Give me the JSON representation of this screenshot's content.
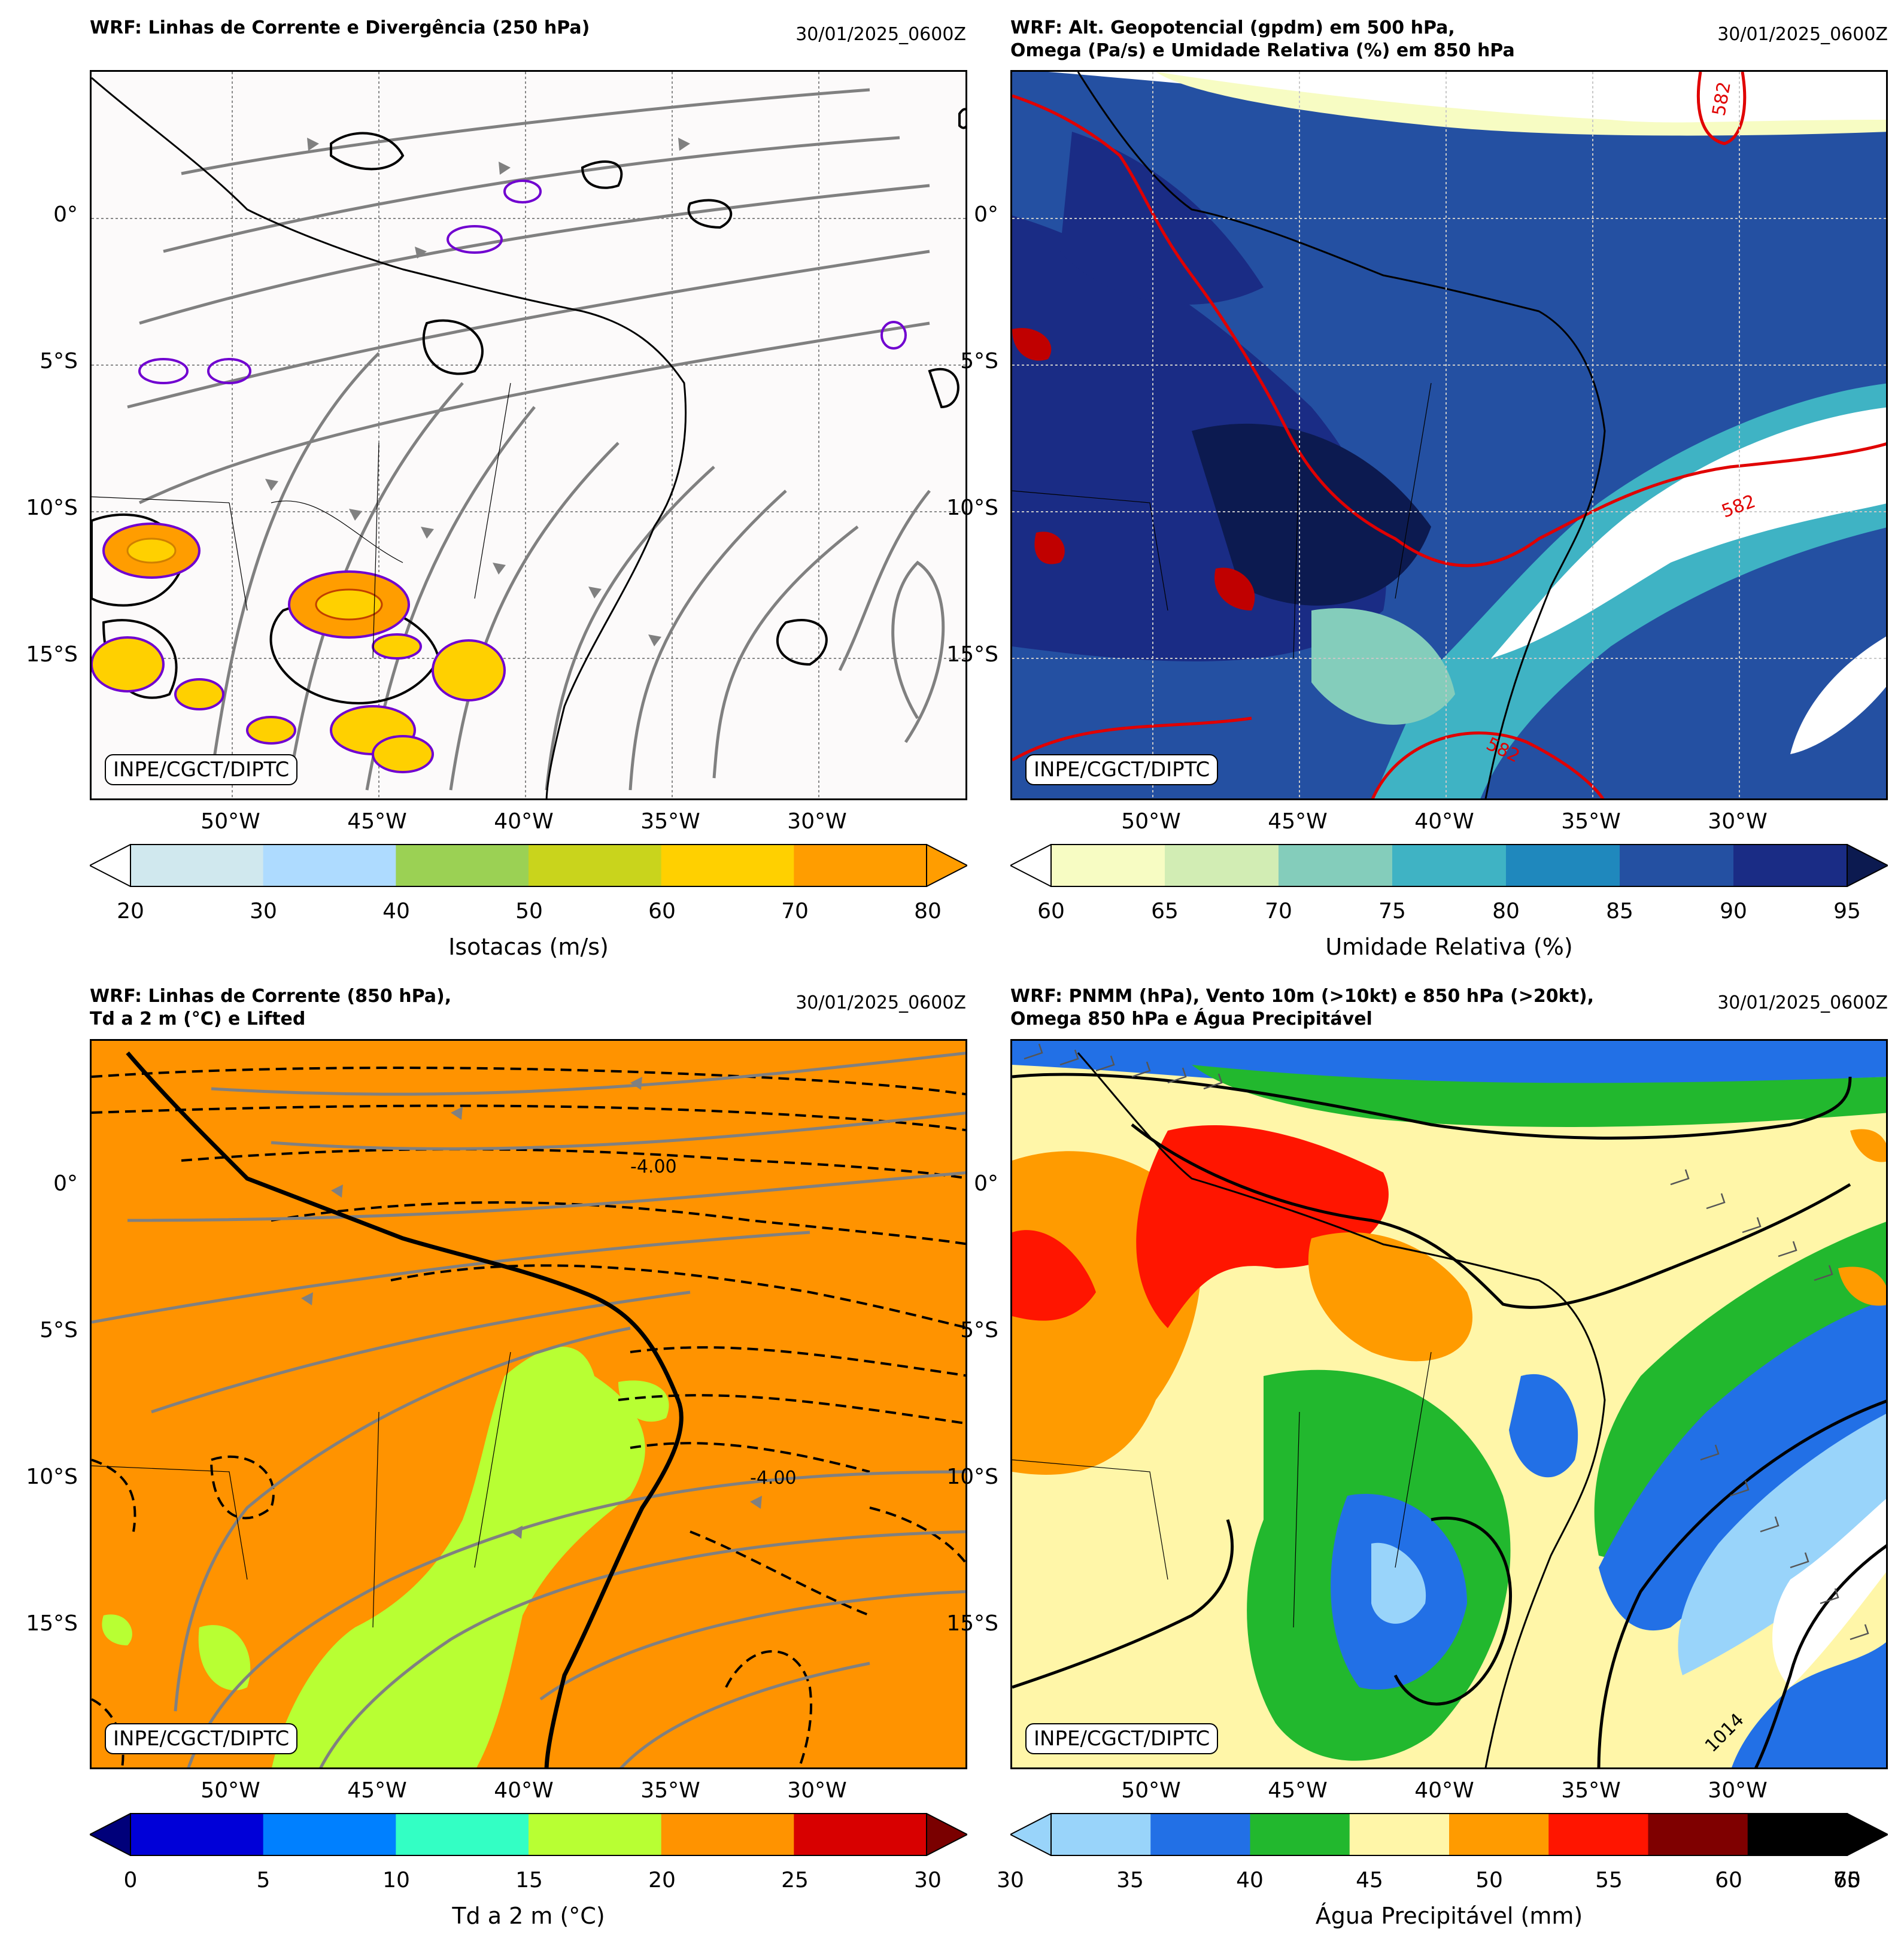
{
  "credit": "INPE/CGCT/DIPTC",
  "lat_labels": [
    "0°",
    "5°S",
    "10°S",
    "15°S"
  ],
  "lon_labels": [
    "50°W",
    "45°W",
    "40°W",
    "35°W",
    "30°W"
  ],
  "panels": [
    {
      "title": "WRF: Linhas de Corrente e Divergência (250 hPa)",
      "date": "30/01/2025_0600Z",
      "colorbar": {
        "label": "Isotacas (m/s)",
        "ticks": [
          "20",
          "30",
          "40",
          "50",
          "60",
          "70",
          "80"
        ],
        "colors": [
          "#d0e8ee",
          "#aedbff",
          "#9bd154",
          "#c9d41c",
          "#ffd000",
          "#ff9d00"
        ],
        "under_color": "#ffffff",
        "over_color": "#ff9d00"
      },
      "contour_label": ""
    },
    {
      "title": "WRF: Alt. Geopotencial (gpdm) em 500 hPa,\nOmega (Pa/s) e Umidade Relativa (%) em 850 hPa",
      "date": "30/01/2025_0600Z",
      "colorbar": {
        "label": "Umidade Relativa (%)",
        "ticks": [
          "60",
          "65",
          "70",
          "75",
          "80",
          "85",
          "90",
          "95"
        ],
        "colors": [
          "#f7fcc3",
          "#d2edb4",
          "#84cdbb",
          "#3fb3c4",
          "#1f88bd",
          "#2450a2",
          "#1a2c85"
        ],
        "under_color": "#ffffff",
        "over_color": "#0c1a50"
      },
      "contour_label": "582"
    },
    {
      "title": "WRF: Linhas de Corrente (850 hPa),\nTd a 2 m (°C) e Lifted",
      "date": "30/01/2025_0600Z",
      "colorbar": {
        "label": "Td a 2 m (°C)",
        "ticks": [
          "0",
          "5",
          "10",
          "15",
          "20",
          "25",
          "30"
        ],
        "colors": [
          "#0000d8",
          "#0080ff",
          "#33ffc4",
          "#b8ff33",
          "#ff9300",
          "#d80000"
        ],
        "under_color": "#00007a",
        "over_color": "#7a0000"
      },
      "contour_label": "-4.00"
    },
    {
      "title": "WRF: PNMM (hPa), Vento 10m (>10kt) e 850 hPa (>20kt),\nOmega 850 hPa e Água Precipitável",
      "date": "30/01/2025_0600Z",
      "colorbar": {
        "label": "Água Precipitável (mm)",
        "ticks": [
          "30",
          "35",
          "40",
          "45",
          "50",
          "55",
          "60",
          "65",
          "70"
        ],
        "colors": [
          "#99d4fa",
          "#2270e6",
          "#22b82e",
          "#fff6a8",
          "#ff9b00",
          "#ff1500",
          "#7f0000",
          "#000000"
        ],
        "under_color": "#99d4fa",
        "over_color": "#000000"
      },
      "contour_label": "1014"
    }
  ]
}
